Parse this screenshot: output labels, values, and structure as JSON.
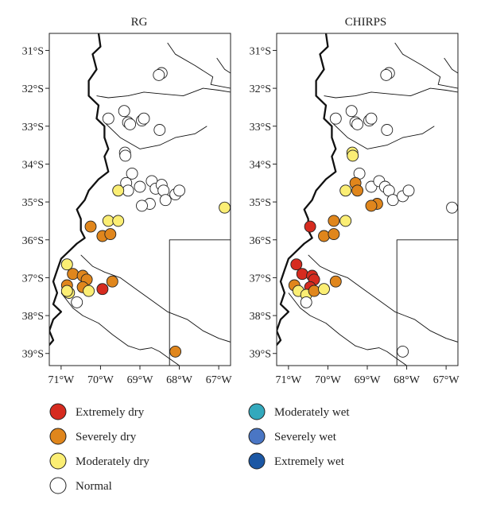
{
  "panels": [
    {
      "title": "RG",
      "stations": [
        {
          "lon": -68.45,
          "lat": -31.6,
          "cls": "normal"
        },
        {
          "lon": -68.52,
          "lat": -31.65,
          "cls": "normal"
        },
        {
          "lon": -69.8,
          "lat": -32.8,
          "cls": "normal"
        },
        {
          "lon": -69.4,
          "lat": -32.6,
          "cls": "normal"
        },
        {
          "lon": -69.3,
          "lat": -32.9,
          "cls": "normal"
        },
        {
          "lon": -69.25,
          "lat": -32.95,
          "cls": "normal"
        },
        {
          "lon": -68.95,
          "lat": -32.85,
          "cls": "normal"
        },
        {
          "lon": -68.9,
          "lat": -32.8,
          "cls": "normal"
        },
        {
          "lon": -68.5,
          "lat": -33.1,
          "cls": "normal"
        },
        {
          "lon": -69.38,
          "lat": -33.7,
          "cls": "normal"
        },
        {
          "lon": -69.37,
          "lat": -33.78,
          "cls": "normal"
        },
        {
          "lon": -69.2,
          "lat": -34.25,
          "cls": "normal"
        },
        {
          "lon": -69.35,
          "lat": -34.5,
          "cls": "normal"
        },
        {
          "lon": -69.3,
          "lat": -34.7,
          "cls": "normal"
        },
        {
          "lon": -69.0,
          "lat": -34.6,
          "cls": "normal"
        },
        {
          "lon": -68.7,
          "lat": -34.45,
          "cls": "normal"
        },
        {
          "lon": -68.6,
          "lat": -34.65,
          "cls": "normal"
        },
        {
          "lon": -68.45,
          "lat": -34.55,
          "cls": "normal"
        },
        {
          "lon": -68.4,
          "lat": -34.7,
          "cls": "normal"
        },
        {
          "lon": -68.1,
          "lat": -34.8,
          "cls": "normal"
        },
        {
          "lon": -68.0,
          "lat": -34.7,
          "cls": "normal"
        },
        {
          "lon": -68.35,
          "lat": -34.95,
          "cls": "normal"
        },
        {
          "lon": -68.75,
          "lat": -35.05,
          "cls": "normal"
        },
        {
          "lon": -68.95,
          "lat": -35.1,
          "cls": "normal"
        },
        {
          "lon": -69.55,
          "lat": -34.7,
          "cls": "moderately_dry"
        },
        {
          "lon": -66.85,
          "lat": -35.15,
          "cls": "moderately_dry"
        },
        {
          "lon": -69.8,
          "lat": -35.5,
          "cls": "moderately_dry"
        },
        {
          "lon": -69.55,
          "lat": -35.5,
          "cls": "moderately_dry"
        },
        {
          "lon": -70.25,
          "lat": -35.65,
          "cls": "severely_dry"
        },
        {
          "lon": -69.95,
          "lat": -35.9,
          "cls": "severely_dry"
        },
        {
          "lon": -69.75,
          "lat": -35.85,
          "cls": "severely_dry"
        },
        {
          "lon": -70.85,
          "lat": -36.65,
          "cls": "moderately_dry"
        },
        {
          "lon": -70.7,
          "lat": -36.9,
          "cls": "severely_dry"
        },
        {
          "lon": -70.45,
          "lat": -36.95,
          "cls": "severely_dry"
        },
        {
          "lon": -70.35,
          "lat": -37.05,
          "cls": "severely_dry"
        },
        {
          "lon": -70.45,
          "lat": -37.25,
          "cls": "severely_dry"
        },
        {
          "lon": -70.85,
          "lat": -37.2,
          "cls": "severely_dry"
        },
        {
          "lon": -70.8,
          "lat": -37.4,
          "cls": "moderately_dry"
        },
        {
          "lon": -70.85,
          "lat": -37.35,
          "cls": "moderately_dry"
        },
        {
          "lon": -70.3,
          "lat": -37.35,
          "cls": "moderately_dry"
        },
        {
          "lon": -70.6,
          "lat": -37.65,
          "cls": "normal"
        },
        {
          "lon": -69.95,
          "lat": -37.3,
          "cls": "extremely_dry"
        },
        {
          "lon": -69.7,
          "lat": -37.1,
          "cls": "severely_dry"
        },
        {
          "lon": -68.1,
          "lat": -38.95,
          "cls": "severely_dry"
        }
      ]
    },
    {
      "title": "CHIRPS",
      "stations": [
        {
          "lon": -68.45,
          "lat": -31.6,
          "cls": "normal"
        },
        {
          "lon": -68.52,
          "lat": -31.65,
          "cls": "normal"
        },
        {
          "lon": -69.8,
          "lat": -32.8,
          "cls": "normal"
        },
        {
          "lon": -69.4,
          "lat": -32.6,
          "cls": "normal"
        },
        {
          "lon": -69.3,
          "lat": -32.9,
          "cls": "normal"
        },
        {
          "lon": -69.25,
          "lat": -32.95,
          "cls": "normal"
        },
        {
          "lon": -68.95,
          "lat": -32.85,
          "cls": "normal"
        },
        {
          "lon": -68.9,
          "lat": -32.8,
          "cls": "normal"
        },
        {
          "lon": -68.5,
          "lat": -33.1,
          "cls": "normal"
        },
        {
          "lon": -69.38,
          "lat": -33.7,
          "cls": "moderately_dry"
        },
        {
          "lon": -69.37,
          "lat": -33.78,
          "cls": "moderately_dry"
        },
        {
          "lon": -69.2,
          "lat": -34.25,
          "cls": "normal"
        },
        {
          "lon": -69.3,
          "lat": -34.5,
          "cls": "severely_dry"
        },
        {
          "lon": -69.25,
          "lat": -34.7,
          "cls": "severely_dry"
        },
        {
          "lon": -69.55,
          "lat": -34.7,
          "cls": "moderately_dry"
        },
        {
          "lon": -68.9,
          "lat": -34.6,
          "cls": "normal"
        },
        {
          "lon": -68.7,
          "lat": -34.45,
          "cls": "normal"
        },
        {
          "lon": -68.55,
          "lat": -34.6,
          "cls": "normal"
        },
        {
          "lon": -68.45,
          "lat": -34.7,
          "cls": "normal"
        },
        {
          "lon": -68.35,
          "lat": -34.95,
          "cls": "normal"
        },
        {
          "lon": -68.1,
          "lat": -34.85,
          "cls": "normal"
        },
        {
          "lon": -67.95,
          "lat": -34.7,
          "cls": "normal"
        },
        {
          "lon": -68.75,
          "lat": -35.05,
          "cls": "severely_dry"
        },
        {
          "lon": -68.9,
          "lat": -35.1,
          "cls": "severely_dry"
        },
        {
          "lon": -66.85,
          "lat": -35.15,
          "cls": "normal"
        },
        {
          "lon": -69.85,
          "lat": -35.5,
          "cls": "severely_dry"
        },
        {
          "lon": -69.55,
          "lat": -35.5,
          "cls": "moderately_dry"
        },
        {
          "lon": -70.45,
          "lat": -35.65,
          "cls": "extremely_dry"
        },
        {
          "lon": -70.1,
          "lat": -35.9,
          "cls": "severely_dry"
        },
        {
          "lon": -69.85,
          "lat": -35.85,
          "cls": "severely_dry"
        },
        {
          "lon": -70.8,
          "lat": -36.65,
          "cls": "extremely_dry"
        },
        {
          "lon": -70.65,
          "lat": -36.9,
          "cls": "extremely_dry"
        },
        {
          "lon": -70.4,
          "lat": -36.95,
          "cls": "extremely_dry"
        },
        {
          "lon": -70.35,
          "lat": -37.05,
          "cls": "extremely_dry"
        },
        {
          "lon": -70.45,
          "lat": -37.25,
          "cls": "extremely_dry"
        },
        {
          "lon": -70.85,
          "lat": -37.2,
          "cls": "severely_dry"
        },
        {
          "lon": -70.75,
          "lat": -37.35,
          "cls": "moderately_dry"
        },
        {
          "lon": -70.55,
          "lat": -37.45,
          "cls": "moderately_dry"
        },
        {
          "lon": -70.35,
          "lat": -37.35,
          "cls": "severely_dry"
        },
        {
          "lon": -70.1,
          "lat": -37.3,
          "cls": "moderately_dry"
        },
        {
          "lon": -70.55,
          "lat": -37.65,
          "cls": "normal"
        },
        {
          "lon": -69.8,
          "lat": -37.1,
          "cls": "severely_dry"
        },
        {
          "lon": -68.1,
          "lat": -38.95,
          "cls": "normal"
        }
      ]
    }
  ],
  "axes": {
    "lat_ticks": [
      -31,
      -32,
      -33,
      -34,
      -35,
      -36,
      -37,
      -38,
      -39
    ],
    "lat_labels": [
      "31°S",
      "32°S",
      "33°S",
      "34°S",
      "35°S",
      "36°S",
      "37°S",
      "38°S",
      "39°S"
    ],
    "lon_ticks": [
      -71,
      -70,
      -69,
      -68,
      -67
    ],
    "lon_labels": [
      "71°W",
      "70°W",
      "69°W",
      "68°W",
      "67°W"
    ],
    "lon_range": [
      -71.3,
      -66.7
    ],
    "lat_range": [
      -30.55,
      -39.32
    ]
  },
  "legend": [
    {
      "key": "extremely_dry",
      "label": "Extremely dry",
      "color": "#d62b1f"
    },
    {
      "key": "severely_dry",
      "label": "Severely dry",
      "color": "#e0861c"
    },
    {
      "key": "moderately_dry",
      "label": "Moderately dry",
      "color": "#fbee74"
    },
    {
      "key": "normal",
      "label": "Normal",
      "color": "#ffffff"
    },
    {
      "key": "moderately_wet",
      "label": "Moderately wet",
      "color": "#33a9bd"
    },
    {
      "key": "severely_wet",
      "label": "Severely wet",
      "color": "#4a76c4"
    },
    {
      "key": "extremely_wet",
      "label": "Extremely wet",
      "color": "#1b57a4"
    }
  ]
}
